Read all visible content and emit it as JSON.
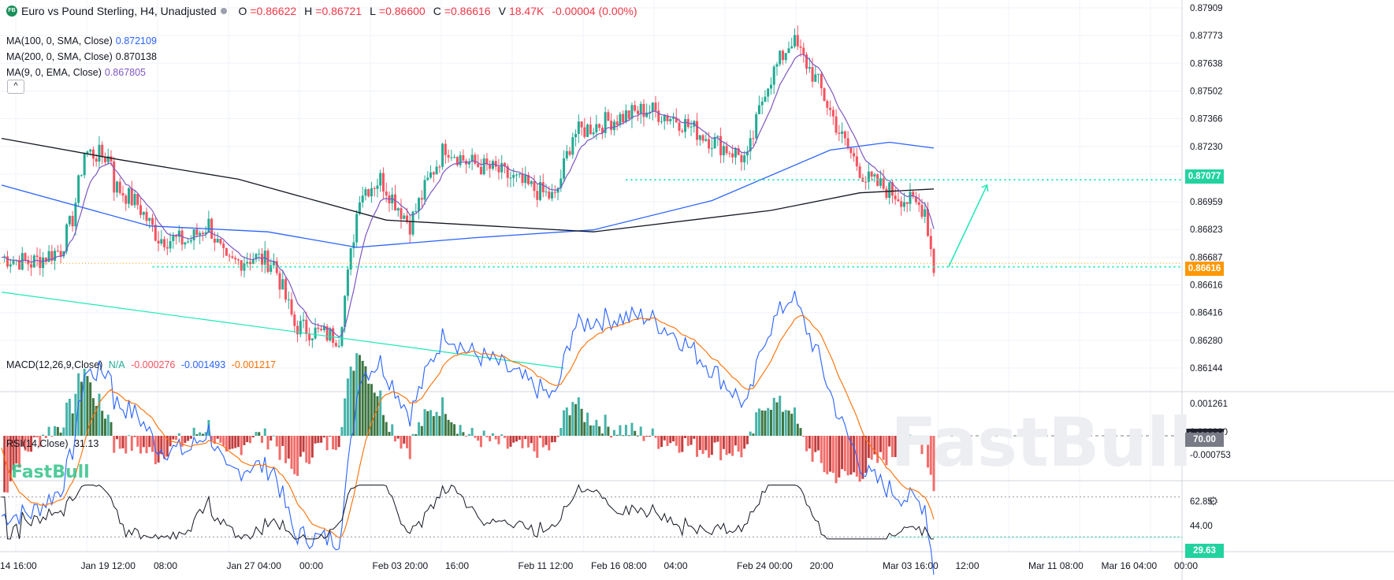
{
  "header": {
    "logo_text": "FB",
    "title": "Euro vs Pound Sterling, H4, Unadjusted",
    "o_label": "O",
    "o": "=0.86622",
    "h_label": "H",
    "h": "=0.86721",
    "l_label": "L",
    "l": "=0.86600",
    "c_label": "C",
    "c": "=0.86616",
    "v_label": "V",
    "v": "18.47K",
    "change": "-0.00004 (0.00%)"
  },
  "indicators": {
    "ma100_label": "MA(100, 0, SMA, Close)",
    "ma100_value": "0.872109",
    "ma200_label": "MA(200, 0, SMA, Close)",
    "ma200_value": "0.870138",
    "ema9_label": "MA(9, 0, EMA, Close)",
    "ema9_value": "0.867805",
    "collapse_icon": "^",
    "macd_label": "MACD(12,26,9,Close)",
    "macd_hist": "N/A",
    "macd_v1": "-0.000276",
    "macd_v2": "-0.001493",
    "macd_v3": "-0.001217",
    "rsi_label": "RSI(14,Close)",
    "rsi_value": "31.13"
  },
  "price_axis": [
    "0.87909",
    "0.87773",
    "0.87638",
    "0.87502",
    "0.87366",
    "0.87230",
    "0.87077",
    "0.86959",
    "0.86823",
    "0.86687",
    "0.86616",
    "0.86416",
    "0.86280",
    "0.86144"
  ],
  "price_tags": {
    "level": "0.87077",
    "last": "0.86616"
  },
  "macd_axis": [
    "0.001261",
    "0.000000",
    "-0.000753"
  ],
  "rsi_axis": [
    "70.00",
    "62.85",
    "44.00",
    "29.63"
  ],
  "time_axis": [
    "14 16:00",
    "Jan 19 12:00",
    "08:00",
    "Jan 27 04:00",
    "00:00",
    "Feb 03 20:00",
    "16:00",
    "Feb 11 12:00",
    "Feb 16 08:00",
    "04:00",
    "Feb 24 00:00",
    "20:00",
    "Mar 03 16:00",
    "12:00",
    "Mar 11 08:00",
    "Mar 16 04:00",
    "00:00"
  ],
  "watermark": "FastBull",
  "colors": {
    "up": "#22ab94",
    "down": "#f7525f",
    "ma100": "#2962ff",
    "ma200": "#131722",
    "ema9": "#7e57c2",
    "level": "#1de9b6",
    "macd": "#2962ff",
    "signal": "#ff6d00"
  },
  "icons": {
    "settings": "gear-icon"
  },
  "chart_data": {
    "type": "candlestick",
    "title": "Euro vs Pound Sterling, H4, Unadjusted",
    "ylim": [
      0.8607,
      0.8796
    ],
    "x_count": 196,
    "anchors": [
      [
        0,
        0.8668
      ],
      [
        10,
        0.8665
      ],
      [
        20,
        0.8672
      ],
      [
        24,
        0.8688
      ],
      [
        28,
        0.8722
      ],
      [
        37,
        0.8719
      ],
      [
        38,
        0.8705
      ],
      [
        46,
        0.8695
      ],
      [
        53,
        0.8678
      ],
      [
        63,
        0.8676
      ],
      [
        70,
        0.8685
      ],
      [
        76,
        0.8664
      ],
      [
        85,
        0.8668
      ],
      [
        92,
        0.8665
      ],
      [
        99,
        0.8633
      ],
      [
        107,
        0.8629
      ],
      [
        114,
        0.8627
      ],
      [
        117,
        0.8658
      ],
      [
        121,
        0.8701
      ],
      [
        128,
        0.8708
      ],
      [
        138,
        0.8685
      ],
      [
        145,
        0.871
      ],
      [
        150,
        0.8725
      ],
      [
        157,
        0.8717
      ],
      [
        168,
        0.8712
      ],
      [
        178,
        0.8704
      ],
      [
        187,
        0.8698
      ],
      [
        193,
        0.8731
      ],
      [
        201,
        0.8736
      ],
      [
        218,
        0.8744
      ],
      [
        228,
        0.8739
      ],
      [
        240,
        0.8728
      ],
      [
        252,
        0.8718
      ],
      [
        258,
        0.8755
      ],
      [
        267,
        0.878
      ],
      [
        276,
        0.8757
      ],
      [
        284,
        0.8729
      ],
      [
        292,
        0.8708
      ],
      [
        299,
        0.8703
      ],
      [
        306,
        0.8697
      ],
      [
        312,
        0.8693
      ],
      [
        315,
        0.8662
      ]
    ],
    "x_span": 315,
    "ma100": [
      [
        0,
        0.8705
      ],
      [
        50,
        0.8684
      ],
      [
        90,
        0.8681
      ],
      [
        120,
        0.8673
      ],
      [
        160,
        0.8678
      ],
      [
        200,
        0.8682
      ],
      [
        240,
        0.8697
      ],
      [
        280,
        0.8723
      ],
      [
        300,
        0.8727
      ],
      [
        315,
        0.8724
      ]
    ],
    "ma200": [
      [
        0,
        0.8729
      ],
      [
        40,
        0.8718
      ],
      [
        80,
        0.8708
      ],
      [
        130,
        0.8687
      ],
      [
        200,
        0.8681
      ],
      [
        260,
        0.8692
      ],
      [
        290,
        0.8701
      ],
      [
        315,
        0.8703
      ]
    ],
    "trendline": [
      [
        0,
        0.865
      ],
      [
        190,
        0.8611
      ]
    ],
    "projection": [
      [
        320,
        0.8663
      ],
      [
        333,
        0.8705
      ]
    ],
    "levels": [
      0.87077,
      0.8663
    ],
    "macd_ylim": [
      -0.0018,
      0.0016
    ]
  }
}
